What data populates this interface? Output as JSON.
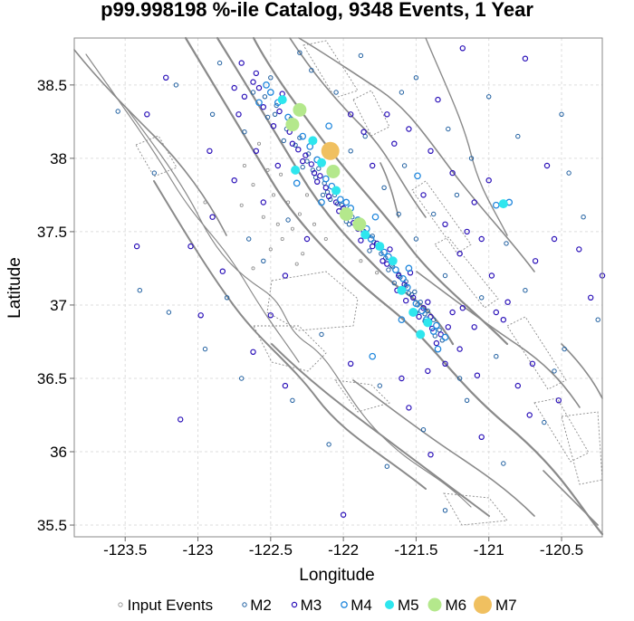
{
  "chart_data": {
    "type": "scatter",
    "title": "p99.998198 %-ile Catalog, 9348 Events, 1 Year",
    "xlabel": "Longitude",
    "ylabel": "Latitude",
    "xlim": [
      -123.85,
      -120.22
    ],
    "ylim": [
      35.42,
      38.82
    ],
    "x_ticks": [
      -123.5,
      -123,
      -122.5,
      -122,
      -121.5,
      -121,
      -120.5
    ],
    "y_ticks": [
      35.5,
      36,
      36.5,
      37,
      37.5,
      38,
      38.5
    ],
    "x_tick_labels": [
      "-123.5",
      "-123",
      "-122.5",
      "-122",
      "-121.5",
      "-121",
      "-120.5"
    ],
    "y_tick_labels": [
      "35.5",
      "36",
      "36.5",
      "37",
      "37.5",
      "38",
      "38.5"
    ],
    "grid": true,
    "legend_position": "bottom",
    "legend": [
      {
        "name": "Input Events",
        "key": "input",
        "color": "#8a8a8a"
      },
      {
        "name": "M2",
        "key": "m2",
        "color": "#1f5fa0"
      },
      {
        "name": "M3",
        "key": "m3",
        "color": "#2a10b8"
      },
      {
        "name": "M4",
        "key": "m4",
        "color": "#2288dd"
      },
      {
        "name": "M5",
        "key": "m5",
        "color": "#2ee6ee"
      },
      {
        "name": "M6",
        "key": "m6",
        "color": "#b4e88c"
      },
      {
        "name": "M7",
        "key": "m7",
        "color": "#f0c060"
      }
    ],
    "fault_color": "#8a8a8a",
    "events": {
      "m7": [
        [
          -122.09,
          38.05
        ]
      ],
      "m6": [
        [
          -122.07,
          37.91
        ],
        [
          -122.35,
          38.23
        ],
        [
          -121.89,
          37.55
        ],
        [
          -121.98,
          37.62
        ],
        [
          -122.3,
          38.33
        ]
      ],
      "m5": [
        [
          -122.33,
          37.92
        ],
        [
          -121.47,
          36.8
        ],
        [
          -121.6,
          37.1
        ],
        [
          -121.75,
          37.4
        ],
        [
          -122.05,
          37.78
        ],
        [
          -121.52,
          36.95
        ],
        [
          -121.85,
          37.48
        ],
        [
          -122.15,
          37.97
        ],
        [
          -122.42,
          38.4
        ],
        [
          -121.66,
          37.3
        ],
        [
          -120.9,
          37.69
        ],
        [
          -121.42,
          36.88
        ],
        [
          -122.21,
          38.12
        ]
      ],
      "m4": [
        [
          -122.45,
          38.38
        ],
        [
          -122.28,
          38.15
        ],
        [
          -122.18,
          37.99
        ],
        [
          -122.12,
          37.86
        ],
        [
          -122.02,
          37.72
        ],
        [
          -121.95,
          37.66
        ],
        [
          -121.9,
          37.58
        ],
        [
          -121.81,
          37.45
        ],
        [
          -121.72,
          37.36
        ],
        [
          -121.64,
          37.24
        ],
        [
          -121.56,
          37.12
        ],
        [
          -121.5,
          37.01
        ],
        [
          -121.43,
          36.9
        ],
        [
          -121.38,
          36.82
        ],
        [
          -122.53,
          38.5
        ],
        [
          -122.38,
          38.28
        ],
        [
          -122.23,
          38.08
        ],
        [
          -122.08,
          37.81
        ],
        [
          -121.98,
          37.7
        ],
        [
          -121.84,
          37.52
        ],
        [
          -121.69,
          37.33
        ],
        [
          -121.59,
          37.18
        ],
        [
          -121.46,
          36.96
        ],
        [
          -122.5,
          38.45
        ],
        [
          -121.36,
          36.86
        ],
        [
          -120.95,
          37.68
        ],
        [
          -120.86,
          37.7
        ],
        [
          -121.49,
          37.88
        ],
        [
          -122.58,
          38.38
        ],
        [
          -121.3,
          36.78
        ],
        [
          -122.32,
          37.83
        ],
        [
          -121.78,
          37.6
        ],
        [
          -121.55,
          37.25
        ],
        [
          -122.15,
          37.7
        ],
        [
          -121.8,
          36.65
        ],
        [
          -121.6,
          36.9
        ],
        [
          -122.1,
          38.22
        ],
        [
          -121.35,
          36.7
        ]
      ],
      "m3": [
        [
          -122.58,
          38.48
        ],
        [
          -122.44,
          38.32
        ],
        [
          -122.31,
          38.06
        ],
        [
          -122.2,
          37.9
        ],
        [
          -122.1,
          37.74
        ],
        [
          -121.9,
          37.52
        ],
        [
          -121.77,
          37.42
        ],
        [
          -121.62,
          37.2
        ],
        [
          -121.52,
          37.05
        ],
        [
          -121.4,
          36.92
        ],
        [
          -121.33,
          36.8
        ],
        [
          -122.6,
          38.58
        ],
        [
          -122.48,
          38.22
        ],
        [
          -122.26,
          38.02
        ],
        [
          -122.16,
          37.88
        ],
        [
          -122.0,
          37.66
        ],
        [
          -121.86,
          37.5
        ],
        [
          -121.7,
          37.28
        ],
        [
          -121.58,
          37.14
        ],
        [
          -121.45,
          36.98
        ],
        [
          -121.28,
          36.85
        ],
        [
          -122.68,
          38.42
        ],
        [
          -122.37,
          38.18
        ],
        [
          -122.22,
          37.96
        ],
        [
          -122.05,
          37.7
        ],
        [
          -121.93,
          37.56
        ],
        [
          -121.68,
          37.38
        ],
        [
          -121.54,
          37.22
        ],
        [
          -121.42,
          37.02
        ],
        [
          -121.36,
          36.74
        ],
        [
          -122.72,
          38.3
        ],
        [
          -122.42,
          38.44
        ],
        [
          -122.28,
          37.98
        ],
        [
          -122.12,
          37.8
        ],
        [
          -121.97,
          37.6
        ],
        [
          -121.8,
          37.4
        ],
        [
          -121.63,
          37.1
        ],
        [
          -121.48,
          36.92
        ],
        [
          -121.25,
          36.95
        ],
        [
          -122.55,
          38.35
        ],
        [
          -122.35,
          38.1
        ],
        [
          -122.18,
          37.84
        ],
        [
          -122.03,
          37.64
        ],
        [
          -121.88,
          37.44
        ],
        [
          -121.73,
          37.3
        ],
        [
          -121.57,
          37.03
        ],
        [
          -121.39,
          36.84
        ],
        [
          -123.35,
          38.3
        ],
        [
          -123.05,
          37.4
        ],
        [
          -123.42,
          37.4
        ],
        [
          -122.98,
          36.93
        ],
        [
          -122.83,
          37.23
        ],
        [
          -122.62,
          36.68
        ],
        [
          -121.55,
          36.3
        ],
        [
          -121.4,
          35.98
        ],
        [
          -122.0,
          35.57
        ],
        [
          -120.87,
          37.02
        ],
        [
          -120.68,
          37.3
        ],
        [
          -120.55,
          37.45
        ],
        [
          -120.38,
          37.38
        ],
        [
          -120.3,
          37.05
        ],
        [
          -120.22,
          37.2
        ],
        [
          -120.6,
          37.95
        ],
        [
          -121.15,
          37.5
        ],
        [
          -120.98,
          37.2
        ],
        [
          -121.08,
          36.52
        ],
        [
          -120.8,
          36.45
        ],
        [
          -120.52,
          36.35
        ],
        [
          -120.72,
          36.25
        ],
        [
          -121.95,
          36.6
        ],
        [
          -121.6,
          36.5
        ],
        [
          -121.2,
          36.7
        ],
        [
          -121.1,
          36.85
        ],
        [
          -120.95,
          36.95
        ],
        [
          -122.75,
          37.85
        ],
        [
          -122.9,
          37.6
        ],
        [
          -122.5,
          36.93
        ],
        [
          -122.4,
          37.2
        ],
        [
          -122.25,
          37.45
        ],
        [
          -122.55,
          37.7
        ],
        [
          -122.45,
          37.95
        ],
        [
          -122.6,
          38.05
        ],
        [
          -121.7,
          38.3
        ],
        [
          -121.55,
          38.2
        ],
        [
          -121.4,
          38.05
        ],
        [
          -121.25,
          37.9
        ],
        [
          -121.1,
          37.7
        ],
        [
          -121.45,
          37.75
        ],
        [
          -121.3,
          37.55
        ],
        [
          -121.2,
          37.35
        ],
        [
          -121.05,
          37.45
        ],
        [
          -121.65,
          38.1
        ],
        [
          -121.8,
          37.95
        ],
        [
          -121.95,
          38.3
        ],
        [
          -121.86,
          38.18
        ],
        [
          -122.62,
          38.52
        ],
        [
          -122.7,
          38.65
        ],
        [
          -122.75,
          38.48
        ],
        [
          -121.35,
          38.4
        ],
        [
          -121.0,
          37.85
        ],
        [
          -121.18,
          36.98
        ],
        [
          -120.9,
          36.9
        ],
        [
          -120.7,
          36.6
        ],
        [
          -121.3,
          36.6
        ],
        [
          -121.42,
          36.55
        ],
        [
          -120.75,
          38.68
        ],
        [
          -121.18,
          38.75
        ],
        [
          -123.22,
          38.55
        ],
        [
          -122.92,
          38.05
        ],
        [
          -123.12,
          36.22
        ],
        [
          -122.4,
          36.45
        ],
        [
          -121.05,
          36.1
        ]
      ],
      "m2": [
        [
          -122.5,
          38.55
        ],
        [
          -122.43,
          38.4
        ],
        [
          -122.36,
          38.27
        ],
        [
          -122.3,
          38.14
        ],
        [
          -122.24,
          38.03
        ],
        [
          -122.17,
          37.93
        ],
        [
          -122.13,
          37.83
        ],
        [
          -122.06,
          37.75
        ],
        [
          -122.01,
          37.68
        ],
        [
          -121.94,
          37.6
        ],
        [
          -121.87,
          37.53
        ],
        [
          -121.83,
          37.47
        ],
        [
          -121.76,
          37.39
        ],
        [
          -121.71,
          37.32
        ],
        [
          -121.66,
          37.26
        ],
        [
          -121.61,
          37.19
        ],
        [
          -121.57,
          37.13
        ],
        [
          -121.53,
          37.07
        ],
        [
          -121.49,
          37.0
        ],
        [
          -121.44,
          36.94
        ],
        [
          -121.41,
          36.87
        ],
        [
          -121.37,
          36.79
        ],
        [
          -122.54,
          38.42
        ],
        [
          -122.47,
          38.3
        ],
        [
          -122.39,
          38.2
        ],
        [
          -122.33,
          38.09
        ],
        [
          -122.25,
          37.98
        ],
        [
          -122.19,
          37.87
        ],
        [
          -122.11,
          37.77
        ],
        [
          -122.04,
          37.69
        ],
        [
          -121.99,
          37.63
        ],
        [
          -121.91,
          37.55
        ],
        [
          -121.85,
          37.49
        ],
        [
          -121.79,
          37.43
        ],
        [
          -121.74,
          37.35
        ],
        [
          -121.67,
          37.27
        ],
        [
          -121.62,
          37.21
        ],
        [
          -121.57,
          37.16
        ],
        [
          -121.51,
          37.09
        ],
        [
          -121.47,
          37.02
        ],
        [
          -121.42,
          36.96
        ],
        [
          -121.38,
          36.9
        ],
        [
          -121.34,
          36.83
        ],
        [
          -122.62,
          38.45
        ],
        [
          -122.52,
          38.28
        ],
        [
          -122.41,
          38.12
        ],
        [
          -122.28,
          37.94
        ],
        [
          -122.14,
          37.75
        ],
        [
          -121.98,
          37.57
        ],
        [
          -121.82,
          37.37
        ],
        [
          -121.65,
          37.15
        ],
        [
          -121.5,
          36.95
        ],
        [
          -121.32,
          36.76
        ],
        [
          -122.46,
          38.36
        ],
        [
          -122.34,
          38.21
        ],
        [
          -122.21,
          37.92
        ],
        [
          -122.09,
          37.72
        ],
        [
          -121.96,
          37.55
        ],
        [
          -121.8,
          37.47
        ],
        [
          -121.69,
          37.24
        ],
        [
          -121.55,
          37.08
        ],
        [
          -121.44,
          36.89
        ],
        [
          -123.55,
          38.32
        ],
        [
          -123.3,
          37.9
        ],
        [
          -123.15,
          38.5
        ],
        [
          -122.85,
          38.65
        ],
        [
          -122.3,
          38.72
        ],
        [
          -121.88,
          38.7
        ],
        [
          -121.5,
          38.55
        ],
        [
          -121.0,
          38.42
        ],
        [
          -120.8,
          38.15
        ],
        [
          -120.45,
          37.9
        ],
        [
          -120.35,
          37.6
        ],
        [
          -120.25,
          36.9
        ],
        [
          -120.48,
          36.7
        ],
        [
          -120.62,
          36.2
        ],
        [
          -120.9,
          35.92
        ],
        [
          -121.3,
          35.6
        ],
        [
          -121.7,
          35.9
        ],
        [
          -122.1,
          36.05
        ],
        [
          -122.35,
          36.35
        ],
        [
          -122.7,
          36.5
        ],
        [
          -122.95,
          36.7
        ],
        [
          -123.2,
          36.95
        ],
        [
          -123.4,
          37.1
        ],
        [
          -122.15,
          36.8
        ],
        [
          -121.75,
          36.45
        ],
        [
          -121.15,
          36.35
        ],
        [
          -120.95,
          36.65
        ],
        [
          -121.05,
          37.05
        ],
        [
          -121.3,
          37.2
        ],
        [
          -121.5,
          37.45
        ],
        [
          -121.62,
          37.62
        ],
        [
          -121.72,
          37.8
        ],
        [
          -121.95,
          38.05
        ],
        [
          -122.05,
          38.45
        ],
        [
          -122.22,
          38.6
        ],
        [
          -121.6,
          38.45
        ],
        [
          -121.28,
          38.2
        ],
        [
          -121.12,
          38.0
        ],
        [
          -120.88,
          37.42
        ],
        [
          -120.75,
          37.1
        ],
        [
          -122.65,
          37.45
        ],
        [
          -122.8,
          37.05
        ],
        [
          -122.55,
          37.3
        ],
        [
          -122.38,
          37.58
        ],
        [
          -122.68,
          38.18
        ],
        [
          -122.9,
          38.3
        ],
        [
          -121.38,
          37.62
        ],
        [
          -121.22,
          37.75
        ],
        [
          -121.58,
          37.95
        ],
        [
          -121.85,
          38.15
        ],
        [
          -121.2,
          36.5
        ],
        [
          -120.55,
          36.55
        ],
        [
          -121.45,
          36.15
        ],
        [
          -120.5,
          38.3
        ]
      ],
      "input": [
        [
          -122.43,
          37.89
        ],
        [
          -122.48,
          37.75
        ],
        [
          -122.38,
          37.7
        ],
        [
          -122.55,
          37.6
        ],
        [
          -122.45,
          37.55
        ],
        [
          -122.62,
          37.82
        ],
        [
          -122.7,
          37.68
        ],
        [
          -122.52,
          37.92
        ],
        [
          -122.35,
          37.52
        ],
        [
          -122.42,
          37.45
        ],
        [
          -122.5,
          37.38
        ],
        [
          -122.3,
          37.62
        ],
        [
          -122.25,
          37.75
        ],
        [
          -122.95,
          37.7
        ],
        [
          -122.68,
          37.95
        ],
        [
          -122.58,
          38.1
        ],
        [
          -122.2,
          37.55
        ],
        [
          -122.12,
          37.45
        ],
        [
          -122.62,
          37.25
        ],
        [
          -122.28,
          37.35
        ],
        [
          -122.32,
          37.28
        ],
        [
          -121.88,
          37.3
        ],
        [
          -121.77,
          37.22
        ]
      ]
    }
  }
}
